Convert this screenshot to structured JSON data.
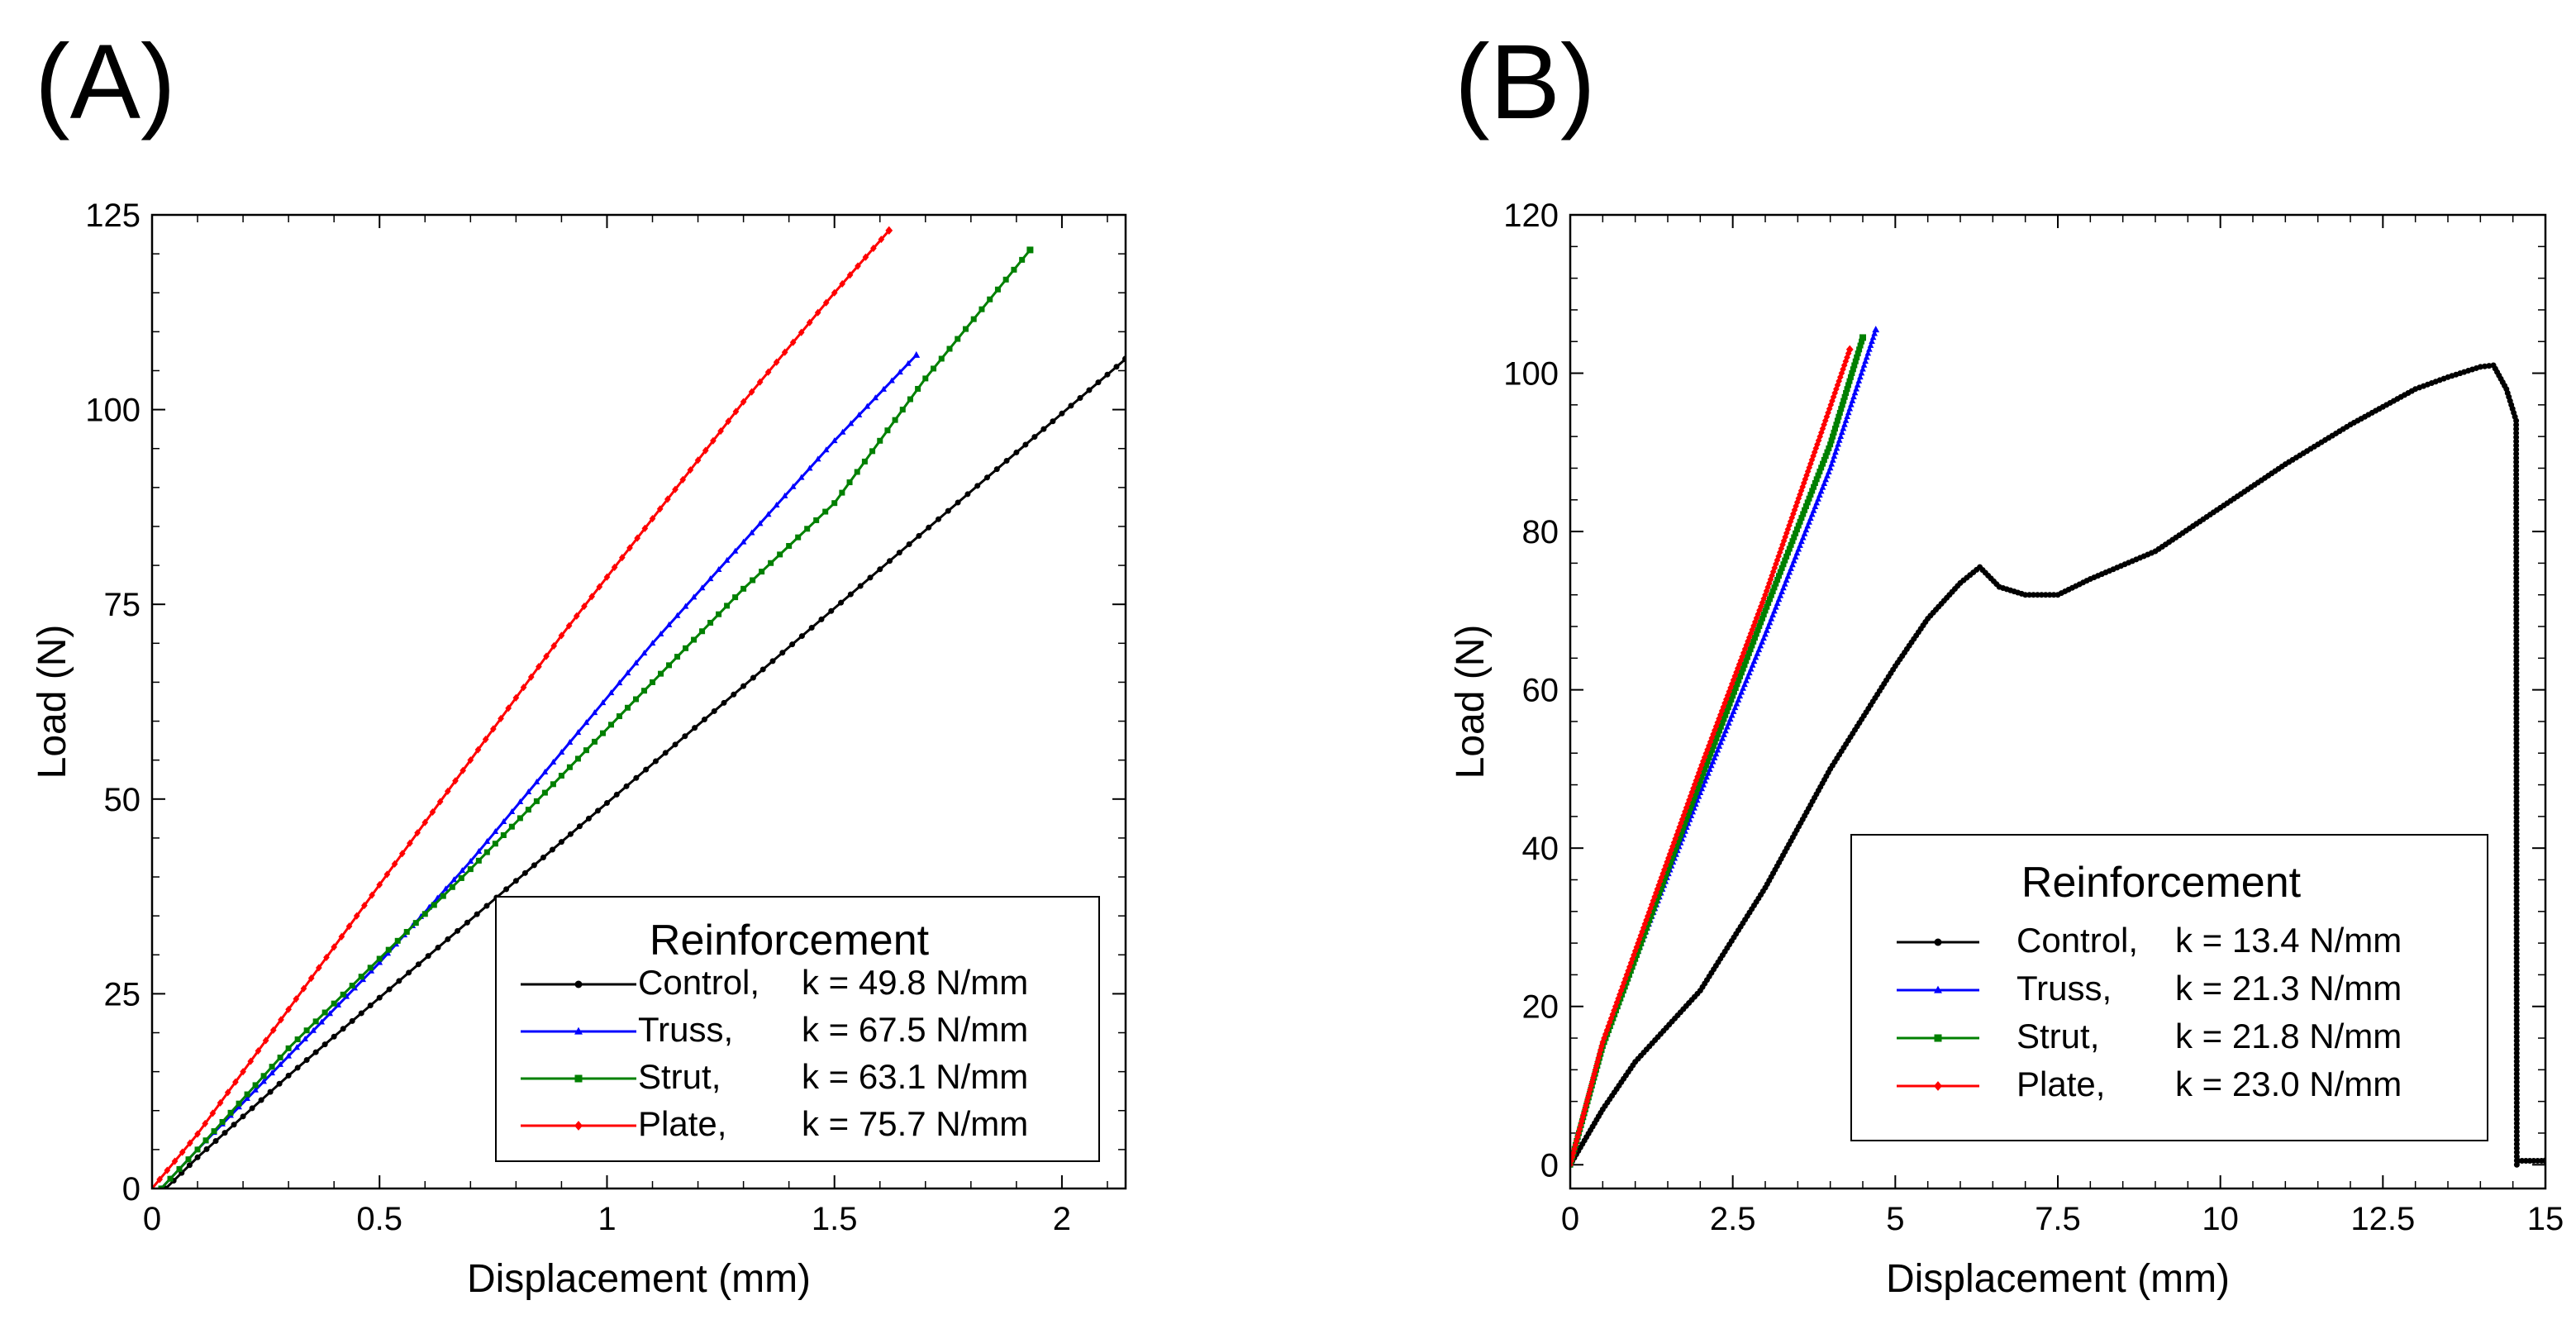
{
  "panels": [
    "(A)",
    "(B)"
  ],
  "chart_data": [
    {
      "type": "line",
      "panel": "(A)",
      "xlabel": "Displacement (mm)",
      "ylabel": "Load (N)",
      "xlim": [
        0,
        2.14
      ],
      "ylim": [
        0,
        125
      ],
      "xticks": [
        0,
        0.5,
        1,
        1.5,
        2
      ],
      "xtick_labels": [
        "0",
        "0.5",
        "1",
        "1.5",
        "2"
      ],
      "yticks": [
        0,
        25,
        50,
        75,
        100,
        125
      ],
      "ytick_labels": [
        "0",
        "25",
        "50",
        "75",
        "100",
        "125"
      ],
      "grid": false,
      "legend": {
        "title": "Reinforcement",
        "placement": "bottom-right",
        "entries": [
          {
            "label": "Control,",
            "k": "k = 49.8 N/mm"
          },
          {
            "label": "Truss,",
            "k": "k = 67.5 N/mm"
          },
          {
            "label": "Strut,",
            "k": "k = 63.1 N/mm"
          },
          {
            "label": "Plate,",
            "k": "k = 75.7 N/mm"
          }
        ]
      },
      "series": [
        {
          "color": "#000000",
          "marker": "circle",
          "x": [
            0.03,
            0.1,
            0.3,
            0.5,
            0.8,
            1.0,
            1.3,
            1.6,
            1.9,
            2.14
          ],
          "y": [
            0,
            4,
            14.5,
            24.5,
            39.5,
            49.5,
            64.5,
            79.5,
            94.5,
            106.5
          ]
        },
        {
          "color": "#0000ff",
          "marker": "triangle",
          "x": [
            0.02,
            0.1,
            0.3,
            0.5,
            0.7,
            0.9,
            1.1,
            1.3,
            1.5,
            1.68
          ],
          "y": [
            0,
            5,
            17,
            29,
            42,
            56,
            70,
            83,
            96,
            107
          ]
        },
        {
          "color": "#008000",
          "marker": "square",
          "x": [
            0.02,
            0.1,
            0.3,
            0.5,
            0.7,
            0.9,
            1.1,
            1.3,
            1.5,
            1.7,
            1.93
          ],
          "y": [
            0,
            5,
            18,
            29.5,
            41,
            53,
            65,
            77,
            88,
            104,
            120.5
          ]
        },
        {
          "color": "#ff0000",
          "marker": "diamond",
          "x": [
            0,
            0.1,
            0.3,
            0.5,
            0.7,
            0.9,
            1.1,
            1.3,
            1.5,
            1.62
          ],
          "y": [
            0,
            7,
            23,
            39,
            55,
            71,
            86,
            101,
            115,
            123
          ]
        }
      ]
    },
    {
      "type": "line",
      "panel": "(B)",
      "xlabel": "Displacement (mm)",
      "ylabel": "Load (N)",
      "xlim": [
        0,
        15
      ],
      "ylim": [
        -3,
        120
      ],
      "xticks": [
        0,
        2.5,
        5,
        7.5,
        10,
        12.5,
        15
      ],
      "xtick_labels": [
        "0",
        "2.5",
        "5",
        "7.5",
        "10",
        "12.5",
        "15"
      ],
      "yticks": [
        0,
        20,
        40,
        60,
        80,
        100,
        120
      ],
      "ytick_labels": [
        "0",
        "20",
        "40",
        "60",
        "80",
        "100",
        "120"
      ],
      "grid": false,
      "legend": {
        "title": "Reinforcement",
        "placement": "bottom-right",
        "entries": [
          {
            "label": "Control,",
            "k": "k = 13.4 N/mm"
          },
          {
            "label": "Truss,",
            "k": "k = 21.3 N/mm"
          },
          {
            "label": "Strut,",
            "k": "k = 21.8 N/mm"
          },
          {
            "label": "Plate,",
            "k": "k = 23.0 N/mm"
          }
        ]
      },
      "series": [
        {
          "color": "#000000",
          "marker": "circle",
          "x": [
            0,
            0.5,
            1.0,
            2.0,
            3.0,
            4.0,
            5.0,
            5.5,
            6.0,
            6.3,
            6.6,
            7.0,
            7.5,
            8.0,
            9.0,
            10.0,
            11.0,
            12.0,
            13.0,
            13.5,
            14.0,
            14.2,
            14.4,
            14.55,
            14.56,
            14.58,
            15.0
          ],
          "y": [
            0,
            7,
            13,
            22,
            35,
            50,
            63,
            69,
            73.5,
            75.5,
            73,
            72,
            72,
            74,
            77.5,
            83,
            88.5,
            93.5,
            98,
            99.5,
            100.8,
            101,
            98,
            94,
            0,
            0.5,
            0.5
          ]
        },
        {
          "color": "#0000ff",
          "marker": "triangle",
          "x": [
            0,
            0.5,
            1.0,
            2.0,
            3.0,
            4.0,
            4.7
          ],
          "y": [
            0,
            15,
            26,
            47,
            67,
            88,
            105.5
          ]
        },
        {
          "color": "#008000",
          "marker": "square",
          "x": [
            0,
            0.5,
            1.0,
            2.0,
            3.0,
            4.0,
            4.5
          ],
          "y": [
            0,
            15,
            26,
            48.5,
            70,
            91,
            104.5
          ]
        },
        {
          "color": "#ff0000",
          "marker": "diamond",
          "x": [
            0,
            0.5,
            1.0,
            2.0,
            3.0,
            3.8,
            4.3
          ],
          "y": [
            0,
            15.5,
            27,
            50,
            72,
            91,
            103
          ]
        }
      ]
    }
  ]
}
